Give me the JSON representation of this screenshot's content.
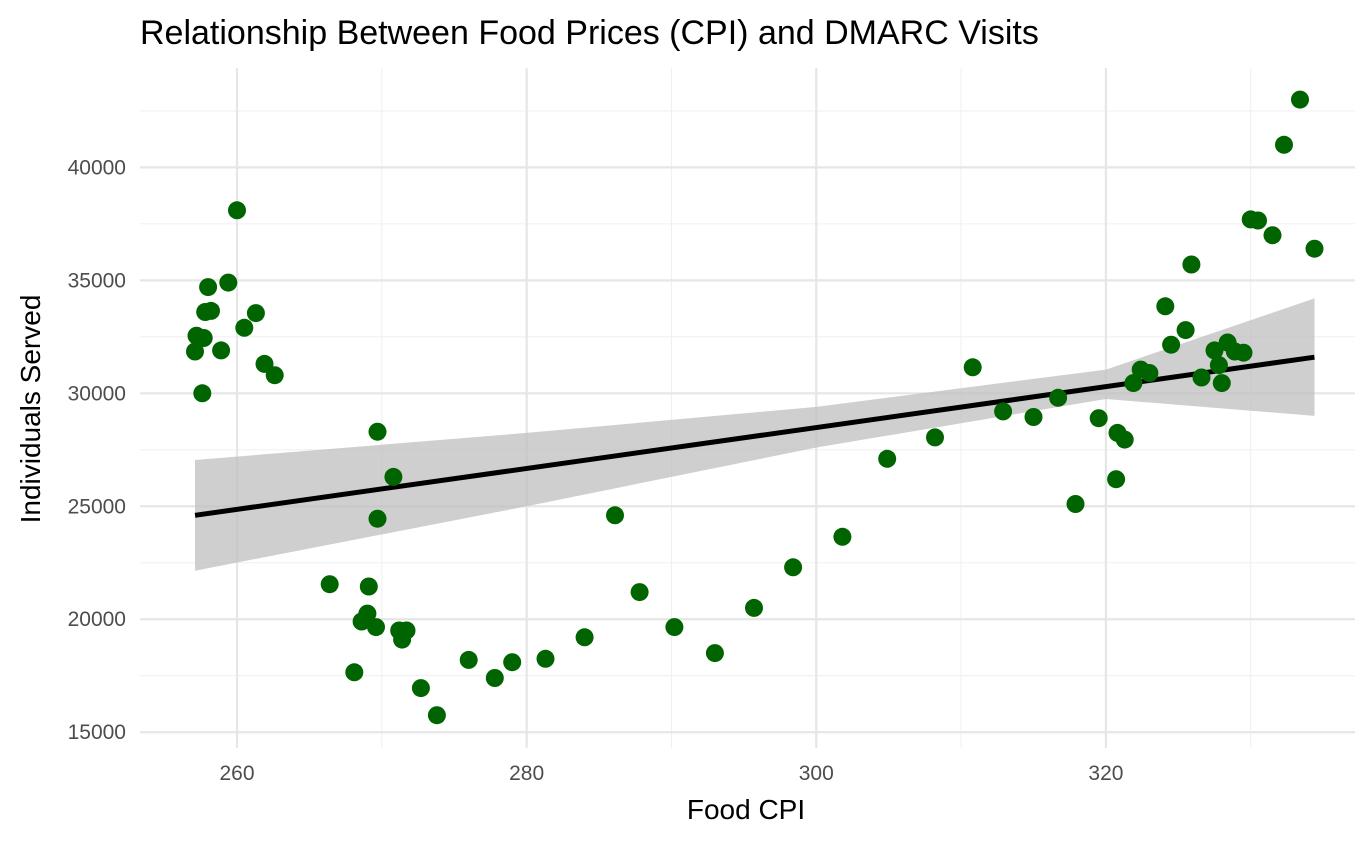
{
  "chart_data": {
    "type": "scatter",
    "title": "Relationship Between Food Prices (CPI) and DMARC Visits",
    "xlabel": "Food CPI",
    "ylabel": "Individuals Served",
    "xlim": [
      253.3,
      337.2
    ],
    "ylim": [
      14300,
      44400
    ],
    "x_ticks": [
      260,
      280,
      300,
      320
    ],
    "x_tick_labels": [
      "260",
      "280",
      "300",
      "320"
    ],
    "y_ticks": [
      15000,
      20000,
      25000,
      30000,
      35000,
      40000
    ],
    "y_tick_labels": [
      "15000",
      "20000",
      "25000",
      "30000",
      "35000",
      "40000"
    ],
    "grid": true,
    "point_color": "#006400",
    "line_color": "#000000",
    "band_color": "#bfbfbf",
    "points": [
      {
        "x": 257.1,
        "y": 31850
      },
      {
        "x": 257.2,
        "y": 32550
      },
      {
        "x": 257.6,
        "y": 30000
      },
      {
        "x": 257.7,
        "y": 32450
      },
      {
        "x": 257.8,
        "y": 33600
      },
      {
        "x": 258.0,
        "y": 34700
      },
      {
        "x": 258.2,
        "y": 33650
      },
      {
        "x": 258.9,
        "y": 31900
      },
      {
        "x": 259.4,
        "y": 34900
      },
      {
        "x": 260.0,
        "y": 38100
      },
      {
        "x": 260.5,
        "y": 32900
      },
      {
        "x": 261.3,
        "y": 33550
      },
      {
        "x": 261.9,
        "y": 31300
      },
      {
        "x": 262.6,
        "y": 30800
      },
      {
        "x": 266.4,
        "y": 21550
      },
      {
        "x": 268.1,
        "y": 17650
      },
      {
        "x": 268.6,
        "y": 19900
      },
      {
        "x": 269.0,
        "y": 20250
      },
      {
        "x": 269.1,
        "y": 21450
      },
      {
        "x": 269.6,
        "y": 19650
      },
      {
        "x": 269.7,
        "y": 28300
      },
      {
        "x": 269.7,
        "y": 24450
      },
      {
        "x": 270.8,
        "y": 26300
      },
      {
        "x": 271.2,
        "y": 19500
      },
      {
        "x": 271.4,
        "y": 19100
      },
      {
        "x": 271.7,
        "y": 19500
      },
      {
        "x": 272.7,
        "y": 16950
      },
      {
        "x": 273.8,
        "y": 15750
      },
      {
        "x": 276.0,
        "y": 18200
      },
      {
        "x": 277.8,
        "y": 17400
      },
      {
        "x": 279.0,
        "y": 18100
      },
      {
        "x": 281.3,
        "y": 18250
      },
      {
        "x": 284.0,
        "y": 19200
      },
      {
        "x": 286.1,
        "y": 24600
      },
      {
        "x": 287.8,
        "y": 21200
      },
      {
        "x": 290.2,
        "y": 19650
      },
      {
        "x": 293.0,
        "y": 18500
      },
      {
        "x": 295.7,
        "y": 20500
      },
      {
        "x": 298.4,
        "y": 22300
      },
      {
        "x": 301.8,
        "y": 23650
      },
      {
        "x": 304.9,
        "y": 27100
      },
      {
        "x": 308.2,
        "y": 28050
      },
      {
        "x": 310.8,
        "y": 31150
      },
      {
        "x": 312.9,
        "y": 29200
      },
      {
        "x": 315.0,
        "y": 28950
      },
      {
        "x": 316.7,
        "y": 29800
      },
      {
        "x": 317.9,
        "y": 25100
      },
      {
        "x": 319.5,
        "y": 28900
      },
      {
        "x": 320.7,
        "y": 26200
      },
      {
        "x": 320.8,
        "y": 28250
      },
      {
        "x": 321.3,
        "y": 27950
      },
      {
        "x": 321.9,
        "y": 30450
      },
      {
        "x": 322.4,
        "y": 31050
      },
      {
        "x": 323.0,
        "y": 30900
      },
      {
        "x": 324.1,
        "y": 33850
      },
      {
        "x": 324.5,
        "y": 32150
      },
      {
        "x": 325.5,
        "y": 32800
      },
      {
        "x": 325.9,
        "y": 35700
      },
      {
        "x": 326.6,
        "y": 30700
      },
      {
        "x": 327.5,
        "y": 31900
      },
      {
        "x": 327.8,
        "y": 31250
      },
      {
        "x": 328.0,
        "y": 30450
      },
      {
        "x": 328.4,
        "y": 32250
      },
      {
        "x": 328.9,
        "y": 31850
      },
      {
        "x": 329.5,
        "y": 31800
      },
      {
        "x": 330.0,
        "y": 37700
      },
      {
        "x": 330.5,
        "y": 37650
      },
      {
        "x": 331.5,
        "y": 37000
      },
      {
        "x": 332.3,
        "y": 41000
      },
      {
        "x": 333.4,
        "y": 43000
      },
      {
        "x": 334.4,
        "y": 36400
      }
    ],
    "trend": {
      "type": "linear",
      "x": [
        257.1,
        334.4
      ],
      "y": [
        24600,
        31600
      ],
      "ci": [
        {
          "x": 257.1,
          "lower": 22150,
          "upper": 27050
        },
        {
          "x": 280.0,
          "lower": 25000,
          "upper": 28250
        },
        {
          "x": 300.0,
          "lower": 27600,
          "upper": 29400
        },
        {
          "x": 320.0,
          "lower": 29750,
          "upper": 31050
        },
        {
          "x": 334.4,
          "lower": 29000,
          "upper": 34200
        }
      ]
    }
  }
}
